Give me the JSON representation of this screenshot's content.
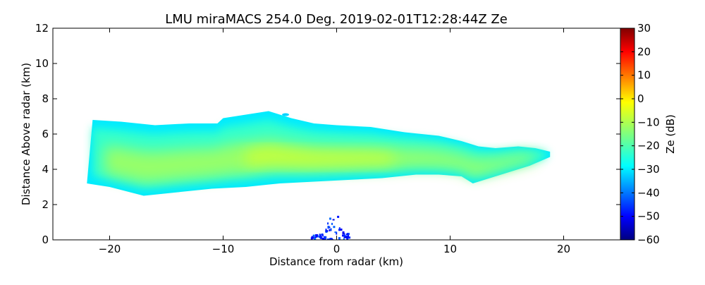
{
  "chart_data": {
    "type": "heatmap",
    "title": "LMU miraMACS 254.0 Deg. 2019-02-01T12:28:44Z  Ze",
    "xlabel": "Distance from radar (km)",
    "ylabel": "Distance Above radar  (km)",
    "xlim": [
      -25,
      25
    ],
    "ylim": [
      0,
      12
    ],
    "xticks": [
      -20,
      -10,
      0,
      10,
      20
    ],
    "xtick_labels": [
      "−20",
      "−10",
      "0",
      "10",
      "20"
    ],
    "yticks": [
      0,
      2,
      4,
      6,
      8,
      10,
      12
    ],
    "ytick_labels": [
      "0",
      "2",
      "4",
      "6",
      "8",
      "10",
      "12"
    ],
    "colorbar": {
      "label": "Ze (dB)",
      "range": [
        -60,
        30
      ],
      "ticks": [
        30,
        20,
        10,
        0,
        -10,
        -20,
        -30,
        -40,
        -50,
        -60
      ],
      "tick_labels": [
        "30",
        "20",
        "10",
        "0",
        "−10",
        "−20",
        "−30",
        "−40",
        "−50",
        "−60"
      ],
      "colormap": "jet"
    },
    "cloud_layer": {
      "top": [
        [
          -21.5,
          6.8
        ],
        [
          -19,
          6.7
        ],
        [
          -16,
          6.5
        ],
        [
          -13,
          6.6
        ],
        [
          -10.5,
          6.6
        ],
        [
          -10,
          6.9
        ],
        [
          -8,
          7.1
        ],
        [
          -6,
          7.3
        ],
        [
          -4,
          6.9
        ],
        [
          -2,
          6.6
        ],
        [
          0,
          6.5
        ],
        [
          3,
          6.4
        ],
        [
          6,
          6.1
        ],
        [
          9,
          5.9
        ],
        [
          11,
          5.6
        ],
        [
          12.5,
          5.3
        ],
        [
          14,
          5.2
        ],
        [
          16,
          5.3
        ],
        [
          17.5,
          5.2
        ],
        [
          18.8,
          5.0
        ]
      ],
      "base": [
        [
          18.8,
          4.7
        ],
        [
          17,
          4.2
        ],
        [
          15,
          3.8
        ],
        [
          13,
          3.4
        ],
        [
          12,
          3.2
        ],
        [
          11,
          3.6
        ],
        [
          9,
          3.7
        ],
        [
          7,
          3.7
        ],
        [
          4,
          3.5
        ],
        [
          1,
          3.4
        ],
        [
          -2,
          3.3
        ],
        [
          -5,
          3.2
        ],
        [
          -8,
          3.0
        ],
        [
          -11,
          2.9
        ],
        [
          -14,
          2.7
        ],
        [
          -17,
          2.5
        ],
        [
          -20,
          3.0
        ],
        [
          -22,
          3.2
        ]
      ],
      "core_ze_db": -12,
      "edge_ze_db": -28
    },
    "small_echo": {
      "x": -4.5,
      "y": 7.1,
      "ze_db": -30
    },
    "ground_clutter": {
      "x_range": [
        -2.3,
        1.0
      ],
      "y_range": [
        0,
        1.8
      ],
      "ze_db": -45
    }
  }
}
